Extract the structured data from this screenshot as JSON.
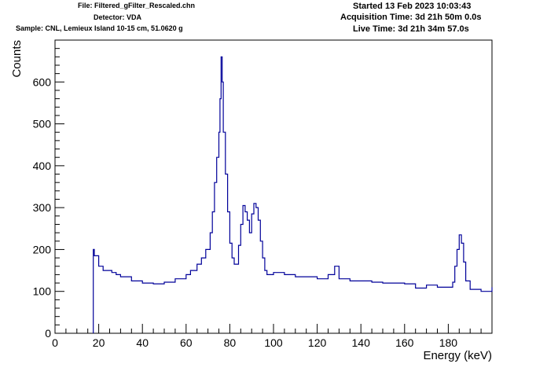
{
  "header": {
    "file": "File: Filtered_gFilter_Rescaled.chn",
    "detector": "Detector: VDA",
    "sample": "Sample: CNL, Lemieux Island 10-15 cm, 51.0620 g",
    "started": "Started 13 Feb 2023 10:03:43",
    "acquisition": "Acquisition Time: 3d 21h 50m 0.0s",
    "live": "Live Time: 3d 21h 34m 57.0s"
  },
  "colors": {
    "series": "#000099",
    "axis": "#000000",
    "background": "#ffffff"
  },
  "chart_data": {
    "type": "line",
    "step": true,
    "xlabel": "Energy (keV)",
    "ylabel": "Counts",
    "xlim": [
      0,
      200
    ],
    "ylim": [
      0,
      700
    ],
    "grid": false,
    "xticks": [
      0,
      20,
      40,
      60,
      80,
      100,
      120,
      140,
      160,
      180
    ],
    "yticks": [
      0,
      100,
      200,
      300,
      400,
      500,
      600
    ],
    "series": [
      {
        "x": [
          17.5,
          18,
          20,
          22,
          24,
          26,
          28,
          30,
          35,
          40,
          45,
          50,
          55,
          60,
          62,
          65,
          67,
          69,
          71,
          72,
          73,
          74,
          75,
          75.5,
          76,
          76.5,
          77,
          78,
          79,
          80,
          81,
          82,
          84,
          85,
          86,
          87,
          88,
          89,
          90,
          91,
          92,
          93,
          94,
          95,
          96,
          97,
          98,
          100,
          105,
          110,
          115,
          120,
          125,
          128,
          130,
          135,
          140,
          145,
          150,
          155,
          160,
          165,
          170,
          175,
          180,
          182,
          183,
          184,
          185,
          186,
          187,
          188,
          190,
          195,
          200
        ],
        "y": [
          200,
          185,
          160,
          150,
          150,
          145,
          140,
          135,
          125,
          120,
          118,
          122,
          130,
          140,
          150,
          165,
          180,
          200,
          240,
          290,
          360,
          420,
          480,
          560,
          660,
          600,
          480,
          380,
          290,
          215,
          180,
          165,
          210,
          260,
          305,
          290,
          270,
          240,
          285,
          310,
          300,
          270,
          220,
          180,
          150,
          140,
          140,
          145,
          140,
          135,
          135,
          130,
          140,
          160,
          130,
          125,
          125,
          122,
          120,
          120,
          118,
          108,
          115,
          110,
          110,
          122,
          160,
          200,
          235,
          215,
          170,
          125,
          105,
          100,
          110
        ]
      }
    ]
  }
}
